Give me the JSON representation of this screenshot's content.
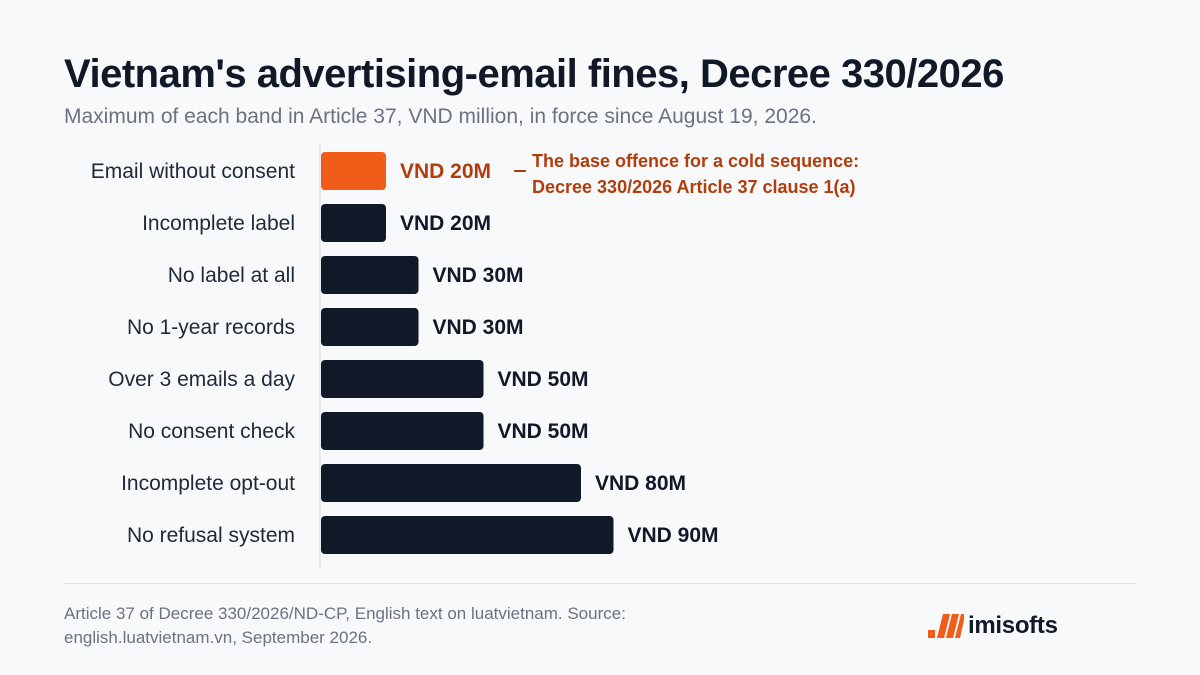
{
  "header": {
    "title": "Vietnam's advertising-email fines, Decree 330/2026",
    "subtitle": "Maximum of each band in Article 37, VND million, in force since August 19, 2026."
  },
  "footer": {
    "source": "Article 37 of Decree 330/2026/ND-CP, English text on luatvietnam. Source: english.luatvietnam.vn, September 2026.",
    "logo_text": "imisofts"
  },
  "colors": {
    "bar": "#111827",
    "highlight": "#f25c19",
    "highlight_text": "#b23d0c"
  },
  "chart_data": {
    "type": "bar",
    "orientation": "horizontal",
    "title": "Vietnam's advertising-email fines, Decree 330/2026",
    "subtitle": "Maximum of each band in Article 37, VND million, in force since August 19, 2026.",
    "categories": [
      "Email without consent",
      "Incomplete label",
      "No label at all",
      "No 1-year records",
      "Over 3 emails a day",
      "No consent check",
      "Incomplete opt-out",
      "No refusal system"
    ],
    "values": [
      20,
      20,
      30,
      30,
      50,
      50,
      80,
      90
    ],
    "data_labels": [
      "VND 20M",
      "VND 20M",
      "VND 30M",
      "VND 30M",
      "VND 50M",
      "VND 50M",
      "VND 80M",
      "VND 90M"
    ],
    "highlight_index": 0,
    "annotation": {
      "lines": [
        "The base offence for a cold sequence:",
        "Decree 330/2026 Article 37 clause 1(a)"
      ]
    },
    "xlim": [
      0,
      90
    ],
    "grid": false,
    "legend": "none"
  }
}
